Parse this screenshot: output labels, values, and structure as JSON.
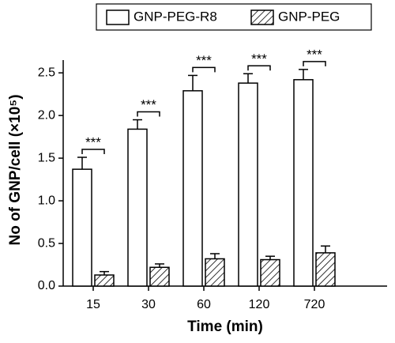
{
  "chart_data": {
    "type": "bar",
    "xlabel": "Time (min)",
    "ylabel": "No of GNP/cell (×10⁵)",
    "categories": [
      "15",
      "30",
      "60",
      "120",
      "720"
    ],
    "series": [
      {
        "name": "GNP-PEG-R8",
        "color": "#ffffff",
        "pattern": "none",
        "values": [
          1.37,
          1.84,
          2.29,
          2.38,
          2.42
        ],
        "errors": [
          0.14,
          0.11,
          0.18,
          0.11,
          0.12
        ]
      },
      {
        "name": "GNP-PEG",
        "color": "#ffffff",
        "pattern": "hatch",
        "values": [
          0.13,
          0.22,
          0.32,
          0.31,
          0.39
        ],
        "errors": [
          0.04,
          0.04,
          0.06,
          0.04,
          0.08
        ]
      }
    ],
    "annotations": [
      "***",
      "***",
      "***",
      "***",
      "***"
    ],
    "ylim": [
      0,
      2.65
    ],
    "yticks": [
      {
        "value": 0,
        "label": "0.0"
      },
      0.5,
      {
        "value": 1,
        "label": "1.0"
      },
      1.5,
      {
        "value": 2,
        "label": "2.0"
      },
      2.5
    ],
    "legend": "top"
  }
}
